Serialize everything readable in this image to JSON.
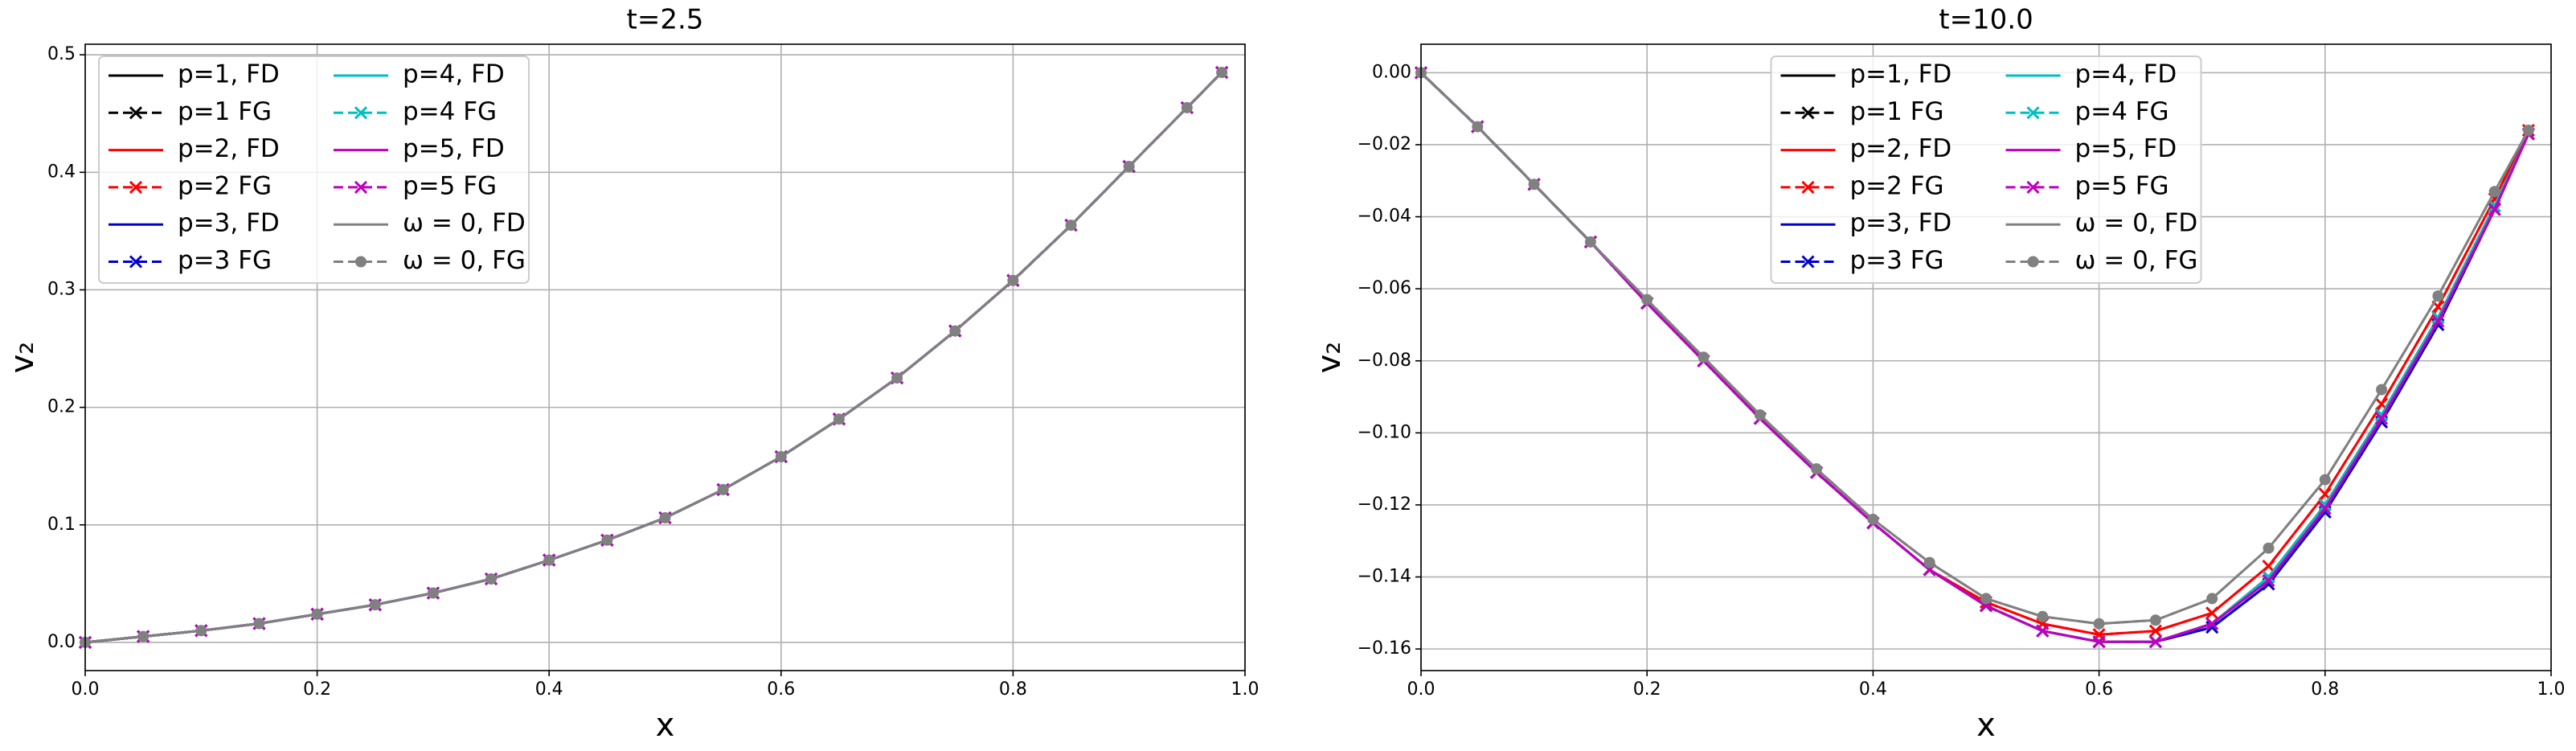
{
  "chart_data": [
    {
      "type": "line",
      "title": "t=2.5",
      "x_label": "x",
      "y_label": "v₂",
      "grid": true,
      "legend": "upper left",
      "x": [
        0,
        0.05,
        0.1,
        0.15,
        0.2,
        0.25,
        0.3,
        0.35,
        0.4,
        0.45,
        0.5,
        0.55,
        0.6,
        0.65,
        0.7,
        0.75,
        0.8,
        0.85,
        0.9,
        0.95,
        0.98
      ],
      "xlim": [
        0,
        1
      ],
      "ylim": [
        -0.024,
        0.509
      ],
      "xticks": [
        {
          "value": 0,
          "label": "0.0"
        },
        0.2,
        0.4,
        0.6,
        0.8,
        {
          "value": 1,
          "label": "1.0"
        }
      ],
      "yticks": [
        {
          "value": 0,
          "label": "0.0"
        },
        0.1,
        0.2,
        0.3,
        0.4,
        0.5
      ],
      "series": [
        {
          "name": "p=1, FD",
          "color": "#000000",
          "linestyle": "solid",
          "values": [
            0,
            0.005,
            0.01,
            0.016,
            0.024,
            0.032,
            0.042,
            0.054,
            0.07,
            0.087,
            0.106,
            0.13,
            0.158,
            0.19,
            0.225,
            0.265,
            0.308,
            0.355,
            0.405,
            0.455,
            0.485
          ]
        },
        {
          "name": "p=1 FG",
          "color": "#000000",
          "linestyle": "dashed",
          "marker": "x",
          "values": [
            0,
            0.005,
            0.01,
            0.016,
            0.024,
            0.032,
            0.042,
            0.054,
            0.07,
            0.087,
            0.106,
            0.13,
            0.158,
            0.19,
            0.225,
            0.265,
            0.308,
            0.355,
            0.405,
            0.455,
            0.485
          ]
        },
        {
          "name": "p=2, FD",
          "color": "#ff0000",
          "linestyle": "solid",
          "values": [
            0,
            0.005,
            0.01,
            0.016,
            0.024,
            0.032,
            0.042,
            0.054,
            0.07,
            0.087,
            0.106,
            0.13,
            0.158,
            0.19,
            0.225,
            0.265,
            0.308,
            0.355,
            0.405,
            0.455,
            0.485
          ]
        },
        {
          "name": "p=2 FG",
          "color": "#ff0000",
          "linestyle": "dashed",
          "marker": "x",
          "values": [
            0,
            0.005,
            0.01,
            0.016,
            0.024,
            0.032,
            0.042,
            0.054,
            0.07,
            0.087,
            0.106,
            0.13,
            0.158,
            0.19,
            0.225,
            0.265,
            0.308,
            0.355,
            0.405,
            0.455,
            0.485
          ]
        },
        {
          "name": "p=3, FD",
          "color": "#0000cc",
          "linestyle": "solid",
          "values": [
            0,
            0.005,
            0.01,
            0.016,
            0.024,
            0.032,
            0.042,
            0.054,
            0.07,
            0.087,
            0.106,
            0.13,
            0.158,
            0.19,
            0.225,
            0.265,
            0.308,
            0.355,
            0.405,
            0.455,
            0.485
          ]
        },
        {
          "name": "p=3 FG",
          "color": "#0000cc",
          "linestyle": "dashed",
          "marker": "x",
          "values": [
            0,
            0.005,
            0.01,
            0.016,
            0.024,
            0.032,
            0.042,
            0.054,
            0.07,
            0.087,
            0.106,
            0.13,
            0.158,
            0.19,
            0.225,
            0.265,
            0.308,
            0.355,
            0.405,
            0.455,
            0.485
          ]
        },
        {
          "name": "p=4, FD",
          "color": "#00bfbf",
          "linestyle": "solid",
          "values": [
            0,
            0.005,
            0.01,
            0.016,
            0.024,
            0.032,
            0.042,
            0.054,
            0.07,
            0.087,
            0.106,
            0.13,
            0.158,
            0.19,
            0.225,
            0.265,
            0.308,
            0.355,
            0.405,
            0.455,
            0.485
          ]
        },
        {
          "name": "p=4 FG",
          "color": "#00bfbf",
          "linestyle": "dashed",
          "marker": "x",
          "values": [
            0,
            0.005,
            0.01,
            0.016,
            0.024,
            0.032,
            0.042,
            0.054,
            0.07,
            0.087,
            0.106,
            0.13,
            0.158,
            0.19,
            0.225,
            0.265,
            0.308,
            0.355,
            0.405,
            0.455,
            0.485
          ]
        },
        {
          "name": "p=5, FD",
          "color": "#bf00bf",
          "linestyle": "solid",
          "values": [
            0,
            0.005,
            0.01,
            0.016,
            0.024,
            0.032,
            0.042,
            0.054,
            0.07,
            0.087,
            0.106,
            0.13,
            0.158,
            0.19,
            0.225,
            0.265,
            0.308,
            0.355,
            0.405,
            0.455,
            0.485
          ]
        },
        {
          "name": "p=5 FG",
          "color": "#bf00bf",
          "linestyle": "dashed",
          "marker": "x",
          "values": [
            0,
            0.005,
            0.01,
            0.016,
            0.024,
            0.032,
            0.042,
            0.054,
            0.07,
            0.087,
            0.106,
            0.13,
            0.158,
            0.19,
            0.225,
            0.265,
            0.308,
            0.355,
            0.405,
            0.455,
            0.485
          ]
        },
        {
          "name": "ω = 0, FD",
          "color": "#808080",
          "linestyle": "solid",
          "values": [
            0,
            0.005,
            0.01,
            0.016,
            0.024,
            0.032,
            0.042,
            0.054,
            0.07,
            0.087,
            0.106,
            0.13,
            0.158,
            0.19,
            0.225,
            0.265,
            0.308,
            0.355,
            0.405,
            0.455,
            0.485
          ]
        },
        {
          "name": "ω = 0, FG",
          "color": "#808080",
          "linestyle": "dashed",
          "marker": "o",
          "values": [
            0,
            0.005,
            0.01,
            0.016,
            0.024,
            0.032,
            0.042,
            0.054,
            0.07,
            0.087,
            0.106,
            0.13,
            0.158,
            0.19,
            0.225,
            0.265,
            0.308,
            0.355,
            0.405,
            0.455,
            0.485
          ]
        }
      ]
    },
    {
      "type": "line",
      "title": "t=10.0",
      "x_label": "x",
      "y_label": "v₂",
      "grid": true,
      "legend": "upper center",
      "x": [
        0,
        0.05,
        0.1,
        0.15,
        0.2,
        0.25,
        0.3,
        0.35,
        0.4,
        0.45,
        0.5,
        0.55,
        0.6,
        0.65,
        0.7,
        0.75,
        0.8,
        0.85,
        0.9,
        0.95,
        0.98
      ],
      "xlim": [
        0,
        1
      ],
      "ylim": [
        -0.166,
        0.0079
      ],
      "xticks": [
        {
          "value": 0,
          "label": "0.0"
        },
        0.2,
        0.4,
        0.6,
        0.8,
        {
          "value": 1,
          "label": "1.0"
        }
      ],
      "yticks": [
        {
          "value": 0,
          "label": "0.00"
        },
        {
          "value": -0.02,
          "label": "−0.02"
        },
        {
          "value": -0.04,
          "label": "−0.04"
        },
        {
          "value": -0.06,
          "label": "−0.06"
        },
        {
          "value": -0.08,
          "label": "−0.08"
        },
        {
          "value": -0.1,
          "label": "−0.10"
        },
        {
          "value": -0.12,
          "label": "−0.12"
        },
        {
          "value": -0.14,
          "label": "−0.14"
        },
        {
          "value": -0.16,
          "label": "−0.16"
        }
      ],
      "series": [
        {
          "name": "p=1, FD",
          "color": "#000000",
          "linestyle": "solid",
          "values": [
            0,
            -0.015,
            -0.031,
            -0.047,
            -0.064,
            -0.08,
            -0.096,
            -0.111,
            -0.125,
            -0.138,
            -0.148,
            -0.155,
            -0.158,
            -0.158,
            -0.153,
            -0.14,
            -0.12,
            -0.095,
            -0.068,
            -0.037,
            -0.017
          ]
        },
        {
          "name": "p=1 FG",
          "color": "#000000",
          "linestyle": "dashed",
          "marker": "x",
          "values": [
            0,
            -0.015,
            -0.031,
            -0.047,
            -0.064,
            -0.08,
            -0.096,
            -0.111,
            -0.125,
            -0.138,
            -0.148,
            -0.155,
            -0.158,
            -0.158,
            -0.153,
            -0.14,
            -0.12,
            -0.095,
            -0.068,
            -0.037,
            -0.017
          ]
        },
        {
          "name": "p=2, FD",
          "color": "#ff0000",
          "linestyle": "solid",
          "values": [
            0,
            -0.015,
            -0.031,
            -0.047,
            -0.064,
            -0.08,
            -0.096,
            -0.111,
            -0.125,
            -0.138,
            -0.147,
            -0.153,
            -0.156,
            -0.155,
            -0.15,
            -0.137,
            -0.117,
            -0.092,
            -0.065,
            -0.035,
            -0.016
          ]
        },
        {
          "name": "p=2 FG",
          "color": "#ff0000",
          "linestyle": "dashed",
          "marker": "x",
          "values": [
            0,
            -0.015,
            -0.031,
            -0.047,
            -0.064,
            -0.08,
            -0.096,
            -0.111,
            -0.125,
            -0.138,
            -0.147,
            -0.153,
            -0.156,
            -0.155,
            -0.15,
            -0.137,
            -0.117,
            -0.092,
            -0.065,
            -0.035,
            -0.016
          ]
        },
        {
          "name": "p=3, FD",
          "color": "#0000cc",
          "linestyle": "solid",
          "values": [
            0,
            -0.015,
            -0.031,
            -0.047,
            -0.064,
            -0.08,
            -0.096,
            -0.111,
            -0.125,
            -0.138,
            -0.148,
            -0.155,
            -0.158,
            -0.158,
            -0.154,
            -0.142,
            -0.122,
            -0.097,
            -0.07,
            -0.038,
            -0.017
          ]
        },
        {
          "name": "p=3 FG",
          "color": "#0000cc",
          "linestyle": "dashed",
          "marker": "x",
          "values": [
            0,
            -0.015,
            -0.031,
            -0.047,
            -0.064,
            -0.08,
            -0.096,
            -0.111,
            -0.125,
            -0.138,
            -0.148,
            -0.155,
            -0.158,
            -0.158,
            -0.154,
            -0.142,
            -0.122,
            -0.097,
            -0.07,
            -0.038,
            -0.017
          ]
        },
        {
          "name": "p=4, FD",
          "color": "#00bfbf",
          "linestyle": "solid",
          "values": [
            0,
            -0.015,
            -0.031,
            -0.047,
            -0.064,
            -0.08,
            -0.096,
            -0.111,
            -0.125,
            -0.138,
            -0.148,
            -0.155,
            -0.158,
            -0.158,
            -0.153,
            -0.14,
            -0.12,
            -0.095,
            -0.068,
            -0.037,
            -0.017
          ]
        },
        {
          "name": "p=4 FG",
          "color": "#00bfbf",
          "linestyle": "dashed",
          "marker": "x",
          "values": [
            0,
            -0.015,
            -0.031,
            -0.047,
            -0.064,
            -0.08,
            -0.096,
            -0.111,
            -0.125,
            -0.138,
            -0.148,
            -0.155,
            -0.158,
            -0.158,
            -0.153,
            -0.14,
            -0.12,
            -0.095,
            -0.068,
            -0.037,
            -0.017
          ]
        },
        {
          "name": "p=5, FD",
          "color": "#bf00bf",
          "linestyle": "solid",
          "values": [
            0,
            -0.015,
            -0.031,
            -0.047,
            -0.064,
            -0.08,
            -0.096,
            -0.111,
            -0.125,
            -0.138,
            -0.148,
            -0.155,
            -0.158,
            -0.158,
            -0.153,
            -0.141,
            -0.121,
            -0.096,
            -0.069,
            -0.038,
            -0.017
          ]
        },
        {
          "name": "p=5 FG",
          "color": "#bf00bf",
          "linestyle": "dashed",
          "marker": "x",
          "values": [
            0,
            -0.015,
            -0.031,
            -0.047,
            -0.064,
            -0.08,
            -0.096,
            -0.111,
            -0.125,
            -0.138,
            -0.148,
            -0.155,
            -0.158,
            -0.158,
            -0.153,
            -0.141,
            -0.121,
            -0.096,
            -0.069,
            -0.038,
            -0.017
          ]
        },
        {
          "name": "ω = 0, FD",
          "color": "#808080",
          "linestyle": "solid",
          "values": [
            0,
            -0.015,
            -0.031,
            -0.047,
            -0.063,
            -0.079,
            -0.095,
            -0.11,
            -0.124,
            -0.136,
            -0.146,
            -0.151,
            -0.153,
            -0.152,
            -0.146,
            -0.132,
            -0.113,
            -0.088,
            -0.062,
            -0.033,
            -0.016
          ]
        },
        {
          "name": "ω = 0, FG",
          "color": "#808080",
          "linestyle": "dashed",
          "marker": "o",
          "values": [
            0,
            -0.015,
            -0.031,
            -0.047,
            -0.063,
            -0.079,
            -0.095,
            -0.11,
            -0.124,
            -0.136,
            -0.146,
            -0.151,
            -0.153,
            -0.152,
            -0.146,
            -0.132,
            -0.113,
            -0.088,
            -0.062,
            -0.033,
            -0.016
          ]
        }
      ]
    }
  ]
}
